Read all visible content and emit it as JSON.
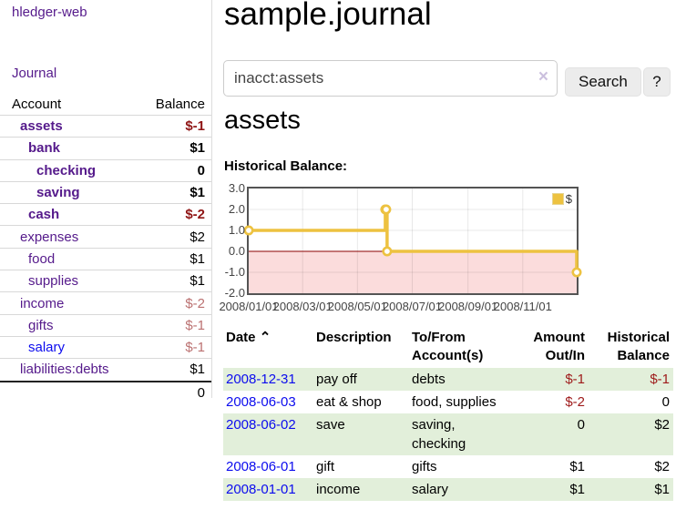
{
  "app": {
    "brand": "hledger-web",
    "nav_journal": "Journal"
  },
  "sidebar": {
    "accounts_table": {
      "headers": {
        "account": "Account",
        "balance": "Balance"
      },
      "rows": [
        {
          "account": "assets",
          "balance": "$-1",
          "indent": 1,
          "emph": true,
          "link": "purple",
          "bal": "neg"
        },
        {
          "account": "bank",
          "balance": "$1",
          "indent": 2,
          "emph": true,
          "link": "purple",
          "bal": "pos"
        },
        {
          "account": "checking",
          "balance": "0",
          "indent": 3,
          "emph": true,
          "link": "purple",
          "bal": "pos"
        },
        {
          "account": "saving",
          "balance": "$1",
          "indent": 3,
          "emph": true,
          "link": "purple",
          "bal": "pos"
        },
        {
          "account": "cash",
          "balance": "$-2",
          "indent": 2,
          "emph": true,
          "link": "purple",
          "bal": "neg"
        },
        {
          "account": "expenses",
          "balance": "$2",
          "indent": 1,
          "emph": false,
          "link": "purple",
          "bal": "pos"
        },
        {
          "account": "food",
          "balance": "$1",
          "indent": 2,
          "emph": false,
          "link": "purple",
          "bal": "pos"
        },
        {
          "account": "supplies",
          "balance": "$1",
          "indent": 2,
          "emph": false,
          "link": "purple",
          "bal": "pos"
        },
        {
          "account": "income",
          "balance": "$-2",
          "indent": 1,
          "emph": false,
          "link": "purple",
          "bal": "fneg"
        },
        {
          "account": "gifts",
          "balance": "$-1",
          "indent": 2,
          "emph": false,
          "link": "purple",
          "bal": "fneg"
        },
        {
          "account": "salary",
          "balance": "$-1",
          "indent": 2,
          "emph": false,
          "link": "blue",
          "bal": "fneg"
        },
        {
          "account": "liabilities:debts",
          "balance": "$1",
          "indent": 1,
          "emph": false,
          "link": "purple",
          "bal": "pos"
        }
      ],
      "total": "0"
    }
  },
  "main": {
    "title": "sample.journal",
    "search": {
      "value": "inacct:assets",
      "clear_icon": "×",
      "button": "Search",
      "help_button": "?"
    },
    "account_heading": "assets",
    "chart_label": "Historical Balance:"
  },
  "chart_data": {
    "type": "line",
    "title": "Historical Balance",
    "step": true,
    "xrange": [
      "2008-01-01",
      "2008-12-31"
    ],
    "ylim": [
      -2,
      3
    ],
    "ytick_labels": [
      "3.0",
      "2.0",
      "1.0",
      "0.0",
      "-1.0",
      "-2.0"
    ],
    "xtick_labels": [
      "2008/01/01",
      "2008/03/01",
      "2008/05/01",
      "2008/07/01",
      "2008/09/01",
      "2008/11/01"
    ],
    "series": [
      {
        "name": "$",
        "color": "#edc240",
        "points": [
          [
            "2008-01-01",
            1
          ],
          [
            "2008-06-01",
            2
          ],
          [
            "2008-06-02",
            2
          ],
          [
            "2008-06-03",
            0
          ],
          [
            "2008-12-31",
            -1
          ]
        ]
      }
    ],
    "legend_position": "top-right",
    "grid": true,
    "negative_region_fill": "#fbdcdc",
    "zero_line_color": "#8b0000",
    "border_color": "#545454"
  },
  "register": {
    "sort_icon": "⌃",
    "headers": [
      {
        "label": "Date",
        "align": "left"
      },
      {
        "label": "Description",
        "align": "left"
      },
      {
        "label": "To/From Account(s)",
        "align": "left"
      },
      {
        "label": "Amount Out/In",
        "align": "right"
      },
      {
        "label": "Historical Balance",
        "align": "right"
      }
    ],
    "rows": [
      {
        "date": "2008-12-31",
        "description": "pay off",
        "accounts": "debts",
        "amount": "$-1",
        "amount_neg": true,
        "balance": "$-1",
        "balance_neg": true
      },
      {
        "date": "2008-06-03",
        "description": "eat & shop",
        "accounts": "food, supplies",
        "amount": "$-2",
        "amount_neg": true,
        "balance": "0",
        "balance_neg": false
      },
      {
        "date": "2008-06-02",
        "description": "save",
        "accounts": "saving, checking",
        "amount": "0",
        "amount_neg": false,
        "balance": "$2",
        "balance_neg": false
      },
      {
        "date": "2008-06-01",
        "description": "gift",
        "accounts": "gifts",
        "amount": "$1",
        "amount_neg": false,
        "balance": "$2",
        "balance_neg": false
      },
      {
        "date": "2008-01-01",
        "description": "income",
        "accounts": "salary",
        "amount": "$1",
        "amount_neg": false,
        "balance": "$1",
        "balance_neg": false
      }
    ]
  }
}
